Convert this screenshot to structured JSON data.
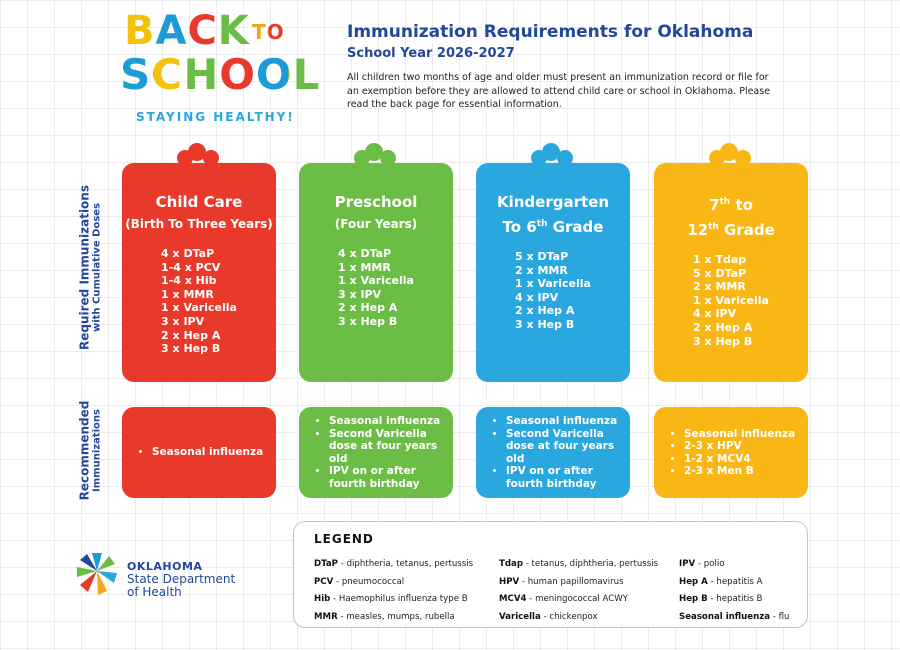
{
  "logo": {
    "back": "BACK",
    "to": "TO",
    "school": "SCHOOL",
    "tagline": "STAYING HEALTHY!"
  },
  "header": {
    "title": "Immunization Requirements for Oklahoma",
    "subtitle": "School Year 2026-2027",
    "intro": "All children two months of age and older must present an immunization record or file for an exemption before they are allowed to attend child care or school in Oklahoma. Please read the back page for essential information."
  },
  "side_labels": {
    "required": [
      "Required Immunizations",
      "with Cumulative Doses"
    ],
    "recommended": [
      "Recommended",
      "Immunizations"
    ]
  },
  "columns": [
    {
      "title": [
        {
          "text": "Child Care"
        },
        {
          "text": "(Birth To Three Years)"
        }
      ],
      "required": [
        "4 x DTaP",
        "1-4 x PCV",
        "1-4 x Hib",
        "1 x MMR",
        "1 x Varicella",
        "3 x IPV",
        "2 x Hep A",
        "3 x Hep B"
      ],
      "recommended": [
        "Seasonal influenza"
      ]
    },
    {
      "title": [
        {
          "text": "Preschool"
        },
        {
          "text": "(Four Years)"
        }
      ],
      "required": [
        "4 x DTaP",
        "1 x MMR",
        "1 x Varicella",
        "3 x IPV",
        "2 x Hep A",
        "3 x Hep B"
      ],
      "recommended": [
        "Seasonal influenza",
        "Second Varicella dose at four years old",
        "IPV on or after fourth birthday"
      ]
    },
    {
      "title": [
        {
          "text": "Kindergarten"
        },
        {
          "text": "To 6",
          "sup": "th",
          "after": " Grade"
        }
      ],
      "required": [
        "5 x DTaP",
        "2 x MMR",
        "1 x Varicella",
        "4 x IPV",
        "2 x Hep A",
        "3 x Hep B"
      ],
      "recommended": [
        "Seasonal influenza",
        "Second Varicella dose at four years old",
        "IPV on or after fourth birthday"
      ]
    },
    {
      "title": [
        {
          "text": "7",
          "sup": "th",
          "after": " to"
        },
        {
          "text": "12",
          "sup": "th",
          "after": " Grade"
        }
      ],
      "required": [
        "1 x Tdap",
        "5 x DTaP",
        "2 x MMR",
        "1 x Varicella",
        "4 x IPV",
        "2 x Hep A",
        "3 x Hep B"
      ],
      "recommended": [
        "Seasonal influenza",
        "2-3 x HPV",
        "1-2 x MCV4",
        "2-3 x Men B"
      ]
    }
  ],
  "legend": {
    "title": "LEGEND",
    "separator": " - ",
    "columns": [
      [
        {
          "abbr": "DTaP",
          "desc": "diphtheria, tetanus, pertussis"
        },
        {
          "abbr": "PCV",
          "desc": "pneumococcal"
        },
        {
          "abbr": "Hib",
          "desc": "Haemophilus influenza type B"
        },
        {
          "abbr": "MMR",
          "desc": "measles, mumps, rubella"
        }
      ],
      [
        {
          "abbr": "Tdap",
          "desc": "tetanus, diphtheria, pertussis"
        },
        {
          "abbr": "HPV",
          "desc": "human papillomavirus"
        },
        {
          "abbr": "MCV4",
          "desc": "meningococcal ACWY"
        },
        {
          "abbr": "Varicella",
          "desc": "chickenpox"
        }
      ],
      [
        {
          "abbr": "IPV",
          "desc": "polio"
        },
        {
          "abbr": "Hep A",
          "desc": "hepatitis A"
        },
        {
          "abbr": "Hep B",
          "desc": "hepatitis B"
        },
        {
          "abbr": "Seasonal influenza",
          "desc": "flu"
        }
      ]
    ]
  },
  "org": [
    "OKLAHOMA",
    "State Department",
    "of Health"
  ]
}
